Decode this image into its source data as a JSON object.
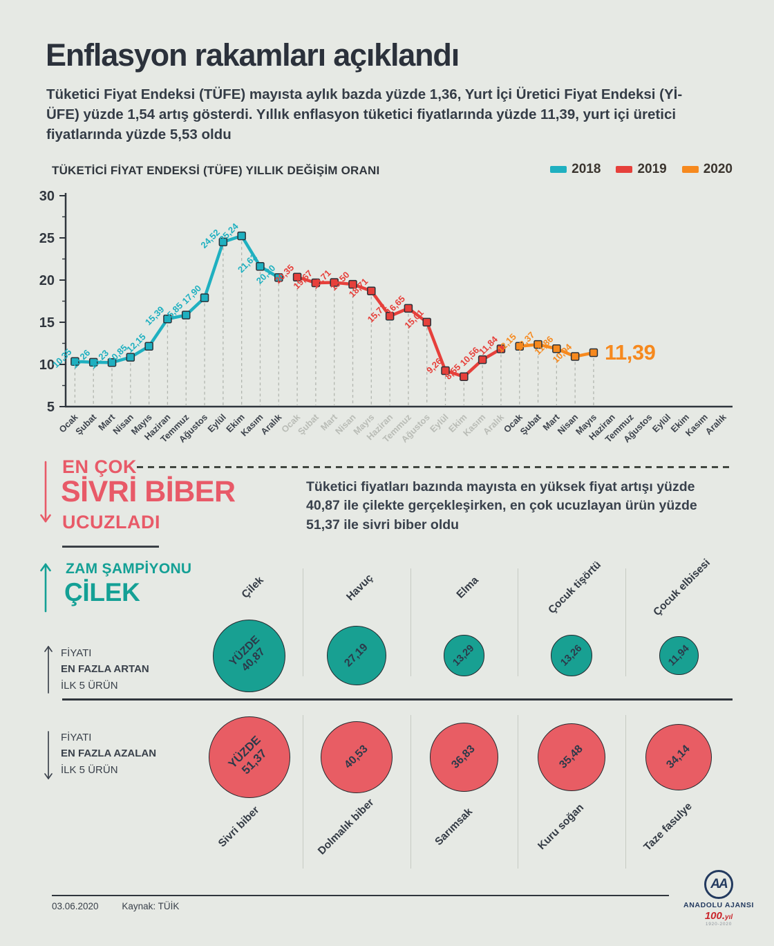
{
  "header": {
    "title": "Enflasyon rakamları açıklandı",
    "subtitle": "Tüketici Fiyat Endeksi (TÜFE) mayısta aylık bazda yüzde 1,36, Yurt İçi Üretici Fiyat Endeksi (Yİ-ÜFE) yüzde 1,54 artış gösterdi. Yıllık enflasyon tüketici fiyatlarında yüzde 11,39, yurt içi üretici fiyatlarında yüzde 5,53 oldu"
  },
  "chart_data": {
    "type": "line",
    "title": "TÜKETİCİ FİYAT ENDEKSİ (TÜFE) YILLIK DEĞİŞİM ORANI",
    "ylim": [
      5,
      30
    ],
    "yticks": [
      5,
      10,
      15,
      20,
      25,
      30
    ],
    "grid": "dashed vertical droplines under each point",
    "legend_position": "top-right",
    "months": [
      "Ocak",
      "Şubat",
      "Mart",
      "Nisan",
      "Mayıs",
      "Haziran",
      "Temmuz",
      "Ağustos",
      "Eylül",
      "Ekim",
      "Kasım",
      "Aralık"
    ],
    "month_label_colors": [
      "#3d434c",
      "#b9bcb6",
      "#3d434c"
    ],
    "series": [
      {
        "name": "2018",
        "color": "#1fb0c0",
        "year_slot": 0,
        "values": [
          10.35,
          10.26,
          10.23,
          10.85,
          12.15,
          15.39,
          15.85,
          17.9,
          24.52,
          25.24,
          21.62,
          20.3
        ]
      },
      {
        "name": "2019",
        "color": "#e6403b",
        "year_slot": 1,
        "values": [
          20.35,
          19.67,
          19.71,
          19.5,
          18.71,
          15.72,
          16.65,
          15.01,
          9.26,
          8.55,
          10.56,
          11.84
        ]
      },
      {
        "name": "2020",
        "color": "#f6891e",
        "year_slot": 2,
        "emphasize_last": true,
        "values": [
          12.15,
          12.37,
          11.86,
          10.94,
          11.39
        ]
      }
    ]
  },
  "highlight_down": {
    "line1": "EN ÇOK",
    "line2": "SİVRİ BİBER",
    "line3": "UCUZLADI",
    "color": "#e85a68"
  },
  "highlight_paragraph": "Tüketici fiyatları bazında mayısta en yüksek fiyat artışı yüzde 40,87 ile çilekte gerçekleşirken, en çok ucuzlayan ürün yüzde 51,37 ile sivri biber oldu",
  "highlight_up": {
    "line1": "ZAM ŞAMPİYONU",
    "line2": "ÇİLEK",
    "color": "#14a095"
  },
  "bubbles": {
    "up": {
      "label_lines": [
        "FİYATI",
        "EN FAZLA ARTAN",
        "İLK 5 ÜRÜN"
      ],
      "color": "#18a092",
      "items": [
        {
          "name": "Çilek",
          "value": 40.87,
          "value_prefix": "YÜZDE"
        },
        {
          "name": "Havuç",
          "value": 27.19
        },
        {
          "name": "Elma",
          "value": 13.29
        },
        {
          "name": "Çocuk tişörtü",
          "value": 13.26
        },
        {
          "name": "Çocuk elbisesi",
          "value": 11.94
        }
      ]
    },
    "down": {
      "label_lines": [
        "FİYATI",
        "EN FAZLA AZALAN",
        "İLK 5 ÜRÜN"
      ],
      "color": "#e85d64",
      "items": [
        {
          "name": "Sivri biber",
          "value": 51.37,
          "value_prefix": "YÜZDE"
        },
        {
          "name": "Dolmalık biber",
          "value": 40.53
        },
        {
          "name": "Sarımsak",
          "value": 36.83
        },
        {
          "name": "Kuru soğan",
          "value": 35.48
        },
        {
          "name": "Taze fasulye",
          "value": 34.14
        }
      ]
    }
  },
  "footer": {
    "date": "03.06.2020",
    "source": "Kaynak: TÜİK",
    "logo": {
      "monogram": "AA",
      "name": "ANADOLU AJANSI",
      "anniversary": "100.",
      "anniversary_suffix": "yıl",
      "years": "1920-2020"
    }
  }
}
